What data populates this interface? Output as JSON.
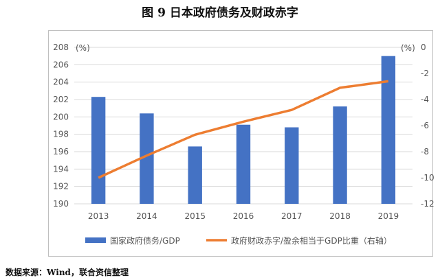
{
  "header": {
    "title": "图 9 日本政府债务及财政赤字"
  },
  "footer": {
    "source": "数据来源：Wind，联合资信整理"
  },
  "chart_data": {
    "type": "bar",
    "categories": [
      "2013",
      "2014",
      "2015",
      "2016",
      "2017",
      "2018",
      "2019"
    ],
    "series": [
      {
        "name": "国家政府债务/GDP",
        "type": "bar",
        "axis": "left",
        "values": [
          202.3,
          200.4,
          196.6,
          199.1,
          198.8,
          201.2,
          207.0
        ],
        "color": "#4472C4"
      },
      {
        "name": "政府财政赤字/盈余相当于GDP比重（右轴）",
        "type": "line",
        "axis": "right",
        "values": [
          -10.0,
          -8.3,
          -6.7,
          -5.7,
          -4.8,
          -3.1,
          -2.6
        ],
        "color": "#ED7D31"
      }
    ],
    "y_left": {
      "unit": "(%)",
      "min": 190,
      "max": 208,
      "step": 2
    },
    "y_right": {
      "unit": "(%)",
      "min": -12,
      "max": 0,
      "step": 2
    },
    "grid": true,
    "legend": "bottom"
  }
}
